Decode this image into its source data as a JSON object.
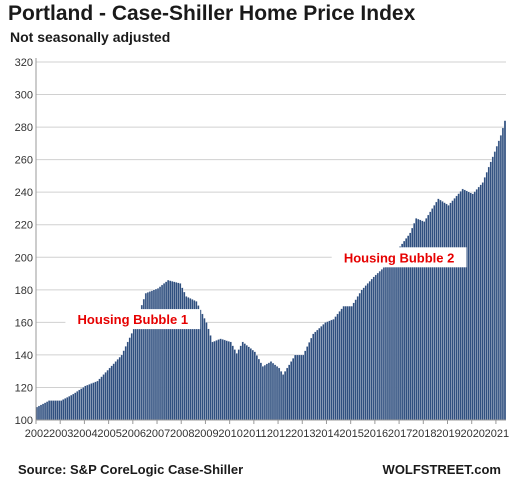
{
  "header": {
    "title": "Portland - Case-Shiller Home Price Index",
    "subtitle": "Not seasonally adjusted"
  },
  "footer": {
    "source": "Source: S&P CoreLogic Case-Shiller",
    "watermark": "WOLFSTREET.com"
  },
  "colors": {
    "bar": "#2f4f7f",
    "bar_edge": "#ffffff",
    "grid": "#d0d0d0",
    "axis": "#999999",
    "annotation": "#e60000"
  },
  "chart_data": {
    "type": "bar",
    "title": "Portland - Case-Shiller Home Price Index",
    "subtitle": "Not seasonally adjusted",
    "xlabel": "",
    "ylabel": "",
    "ylim": [
      100,
      320
    ],
    "yticks": [
      100,
      120,
      140,
      160,
      180,
      200,
      220,
      240,
      260,
      280,
      300,
      320
    ],
    "xtick_labels": [
      "2002",
      "2003",
      "2004",
      "2005",
      "2006",
      "2007",
      "2008",
      "2009",
      "2010",
      "2011",
      "2012",
      "2013",
      "2014",
      "2015",
      "2016",
      "2017",
      "2018",
      "2019",
      "2020",
      "2021"
    ],
    "frequency": "monthly",
    "start": "2002-01",
    "end": "2021-05",
    "grid": "horizontal",
    "legend": "none",
    "annotations": [
      {
        "text": "Housing Bubble 1",
        "x": "2006-01",
        "y": 162
      },
      {
        "text": "Housing Bubble 2",
        "x": "2017-01",
        "y": 200
      }
    ],
    "anchors": [
      [
        "2002-01",
        108
      ],
      [
        "2002-07",
        112
      ],
      [
        "2003-01",
        112
      ],
      [
        "2003-07",
        116
      ],
      [
        "2004-01",
        121
      ],
      [
        "2004-07",
        124
      ],
      [
        "2005-01",
        132
      ],
      [
        "2005-07",
        140
      ],
      [
        "2006-01",
        156
      ],
      [
        "2006-07",
        178
      ],
      [
        "2007-01",
        181
      ],
      [
        "2007-06",
        186
      ],
      [
        "2007-12",
        184
      ],
      [
        "2008-03",
        176
      ],
      [
        "2008-08",
        173
      ],
      [
        "2009-01",
        160
      ],
      [
        "2009-04",
        148
      ],
      [
        "2009-08",
        150
      ],
      [
        "2010-01",
        148
      ],
      [
        "2010-04",
        141
      ],
      [
        "2010-07",
        148
      ],
      [
        "2011-01",
        142
      ],
      [
        "2011-05",
        133
      ],
      [
        "2011-09",
        136
      ],
      [
        "2012-01",
        132
      ],
      [
        "2012-03",
        128
      ],
      [
        "2012-09",
        140
      ],
      [
        "2013-01",
        140
      ],
      [
        "2013-06",
        153
      ],
      [
        "2013-12",
        160
      ],
      [
        "2014-04",
        162
      ],
      [
        "2014-09",
        170
      ],
      [
        "2015-01",
        170
      ],
      [
        "2015-06",
        180
      ],
      [
        "2015-12",
        188
      ],
      [
        "2016-06",
        195
      ],
      [
        "2016-12",
        205
      ],
      [
        "2017-06",
        215
      ],
      [
        "2017-09",
        224
      ],
      [
        "2018-01",
        222
      ],
      [
        "2018-08",
        236
      ],
      [
        "2019-01",
        232
      ],
      [
        "2019-08",
        242
      ],
      [
        "2020-01",
        239
      ],
      [
        "2020-06",
        246
      ],
      [
        "2020-12",
        265
      ],
      [
        "2021-03",
        275
      ],
      [
        "2021-05",
        284
      ]
    ]
  }
}
